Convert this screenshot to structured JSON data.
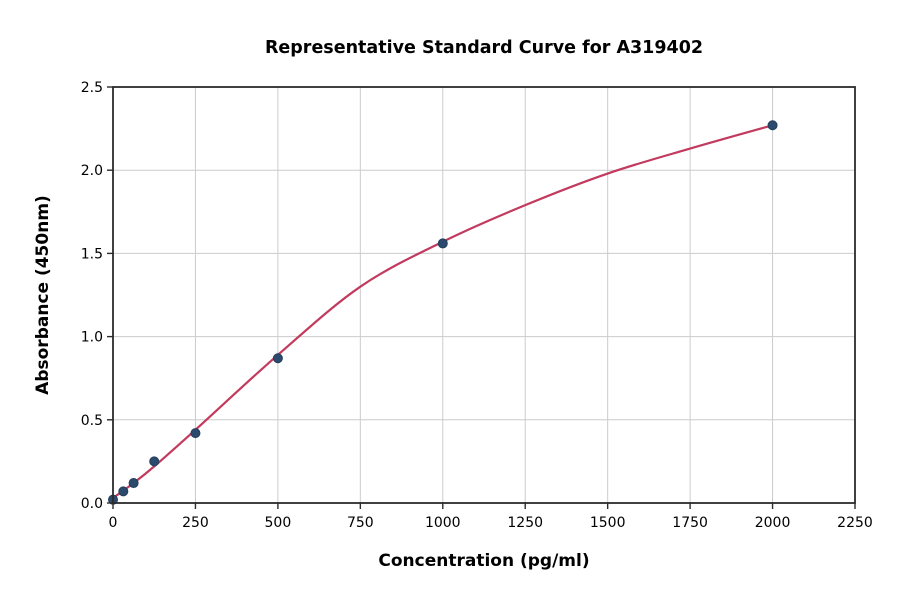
{
  "chart_data": {
    "type": "scatter",
    "title": "Representative Standard Curve for A319402",
    "xlabel": "Concentration (pg/ml)",
    "ylabel": "Absorbance (450nm)",
    "xlim": [
      0,
      2250
    ],
    "ylim": [
      0,
      2.5
    ],
    "xtick_labels": [
      "0",
      "250",
      "500",
      "750",
      "1000",
      "1250",
      "1500",
      "1750",
      "2000",
      "2250"
    ],
    "xtick_values": [
      0,
      250,
      500,
      750,
      1000,
      1250,
      1500,
      1750,
      2000,
      2250
    ],
    "ytick_labels": [
      "0.0",
      "0.5",
      "1.0",
      "1.5",
      "2.0",
      "2.5"
    ],
    "ytick_values": [
      0,
      0.5,
      1.0,
      1.5,
      2.0,
      2.5
    ],
    "grid": true,
    "legend": "none",
    "points": [
      {
        "x": 0,
        "y": 0.02
      },
      {
        "x": 31.25,
        "y": 0.07
      },
      {
        "x": 62.5,
        "y": 0.12
      },
      {
        "x": 125,
        "y": 0.25
      },
      {
        "x": 250,
        "y": 0.42
      },
      {
        "x": 500,
        "y": 0.87
      },
      {
        "x": 1000,
        "y": 1.56
      },
      {
        "x": 2000,
        "y": 2.27
      }
    ],
    "curve": [
      {
        "x": 0,
        "y": 0.03
      },
      {
        "x": 62.5,
        "y": 0.12
      },
      {
        "x": 125,
        "y": 0.22
      },
      {
        "x": 250,
        "y": 0.44
      },
      {
        "x": 500,
        "y": 0.89
      },
      {
        "x": 750,
        "y": 1.3
      },
      {
        "x": 1000,
        "y": 1.57
      },
      {
        "x": 1250,
        "y": 1.79
      },
      {
        "x": 1500,
        "y": 1.98
      },
      {
        "x": 1750,
        "y": 2.13
      },
      {
        "x": 2000,
        "y": 2.27
      }
    ],
    "colors": {
      "marker": "#2c4a6c",
      "marker_edge": "#243e5c",
      "line": "#c23a5e",
      "grid": "#cccccc",
      "spine": "#2b2b2b",
      "text": "#000000"
    }
  }
}
